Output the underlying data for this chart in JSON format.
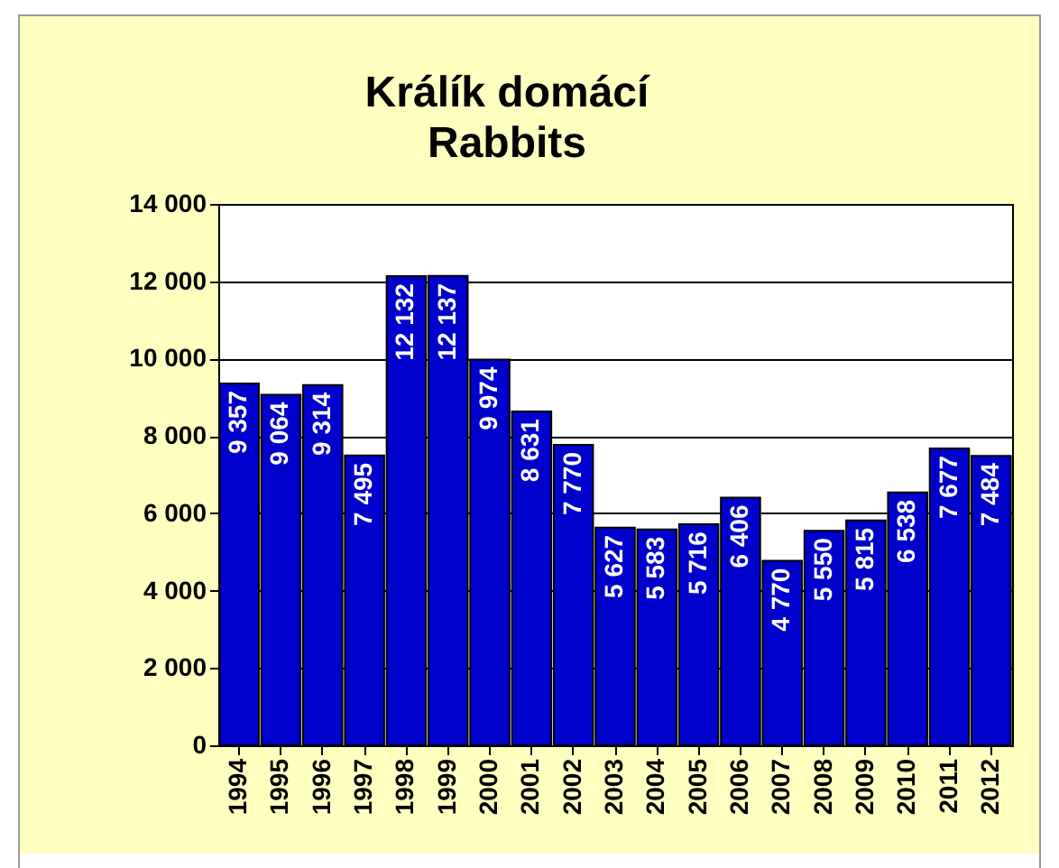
{
  "chart_data": {
    "type": "bar",
    "title": "Králík domácí",
    "subtitle": "Rabbits",
    "categories": [
      "1994",
      "1995",
      "1996",
      "1997",
      "1998",
      "1999",
      "2000",
      "2001",
      "2002",
      "2003",
      "2004",
      "2005",
      "2006",
      "2007",
      "2008",
      "2009",
      "2010",
      "2011",
      "2012"
    ],
    "values": [
      9357,
      9064,
      9314,
      7495,
      12132,
      12137,
      9974,
      8631,
      7770,
      5627,
      5583,
      5716,
      6406,
      4770,
      5550,
      5815,
      6538,
      7677,
      7484
    ],
    "value_labels": [
      "9 357",
      "9 064",
      "9 314",
      "7 495",
      "12 132",
      "12 137",
      "9 974",
      "8 631",
      "7 770",
      "5 627",
      "5 583",
      "5 716",
      "6 406",
      "4 770",
      "5 550",
      "5 815",
      "6 538",
      "7 677",
      "7 484"
    ],
    "color": "#0000cc",
    "ylim": [
      0,
      14000
    ],
    "yticks": [
      0,
      {
        "value": 2000,
        "label": "2 000"
      },
      {
        "value": 4000,
        "label": "4 000"
      },
      {
        "value": 6000,
        "label": "6 000"
      },
      {
        "value": 8000,
        "label": "8 000"
      },
      {
        "value": 10000,
        "label": "10 000"
      },
      {
        "value": 12000,
        "label": "12 000"
      },
      {
        "value": 14000,
        "label": "14 000"
      }
    ],
    "grid": "y"
  }
}
